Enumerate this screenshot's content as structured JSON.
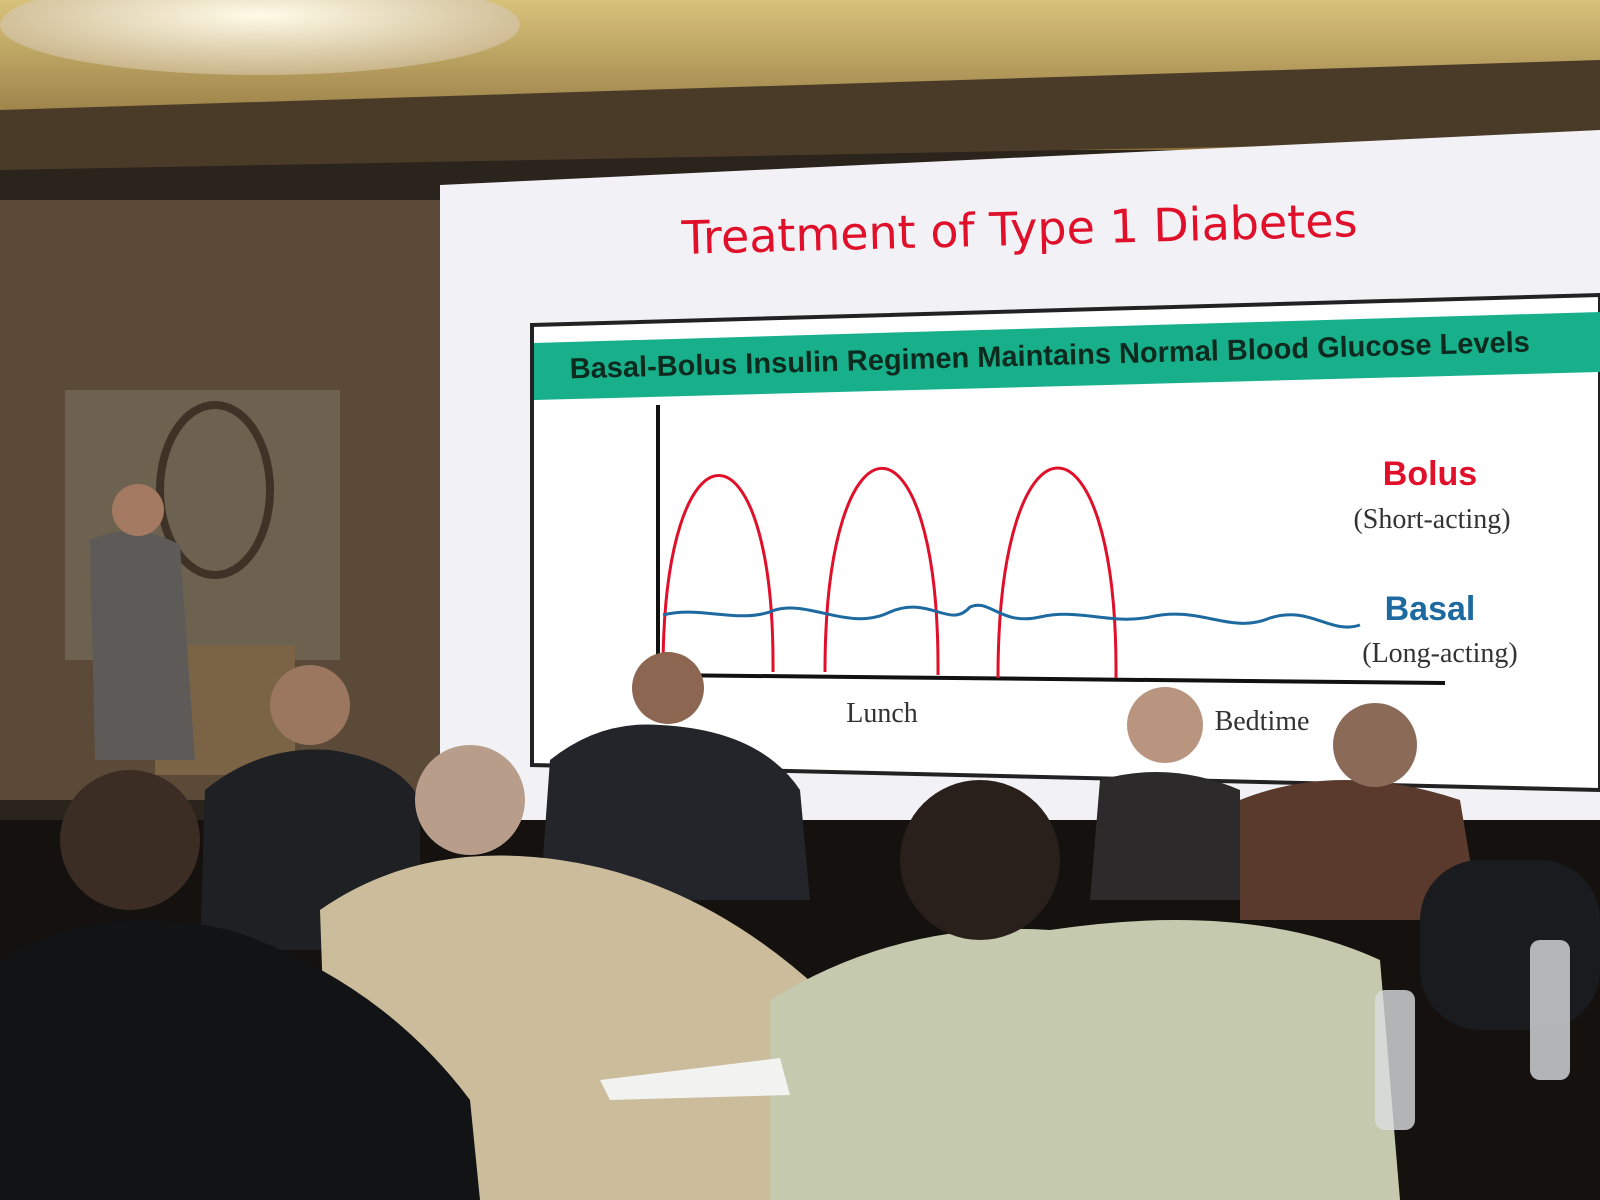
{
  "slide": {
    "title": "Treatment of Type 1 Diabetes",
    "banner": "Basal-Bolus Insulin Regimen Maintains Normal Blood Glucose Levels",
    "legend": [
      {
        "label": "Bolus",
        "note": "(Short-acting)"
      },
      {
        "label": "Basal",
        "note": "(Long-acting)"
      }
    ],
    "x_labels": [
      "Lunch",
      "Bedtime"
    ]
  }
}
